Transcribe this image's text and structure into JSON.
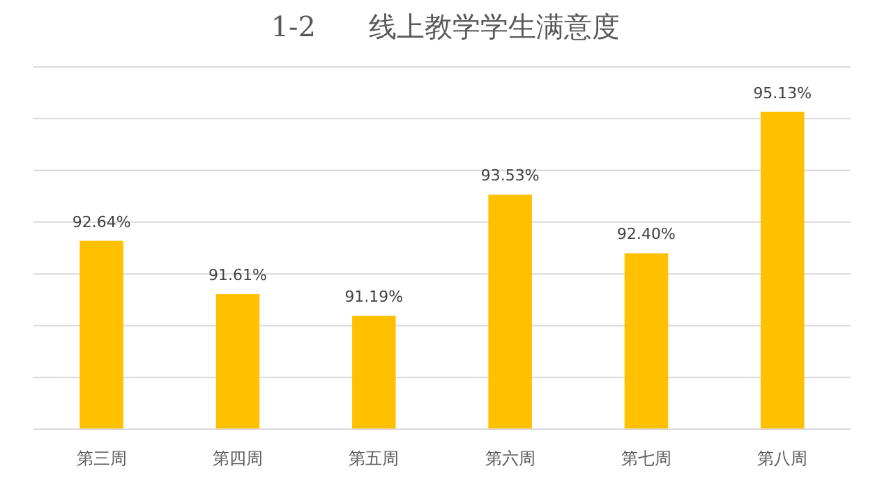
{
  "chart_data": {
    "type": "bar",
    "title": "1-2      线上教学学生满意度",
    "categories": [
      "第三周",
      "第四周",
      "第五周",
      "第六周",
      "第七周",
      "第八周"
    ],
    "values": [
      92.64,
      91.61,
      91.19,
      93.53,
      92.4,
      95.13
    ],
    "value_labels": [
      "92.64%",
      "91.61%",
      "91.19%",
      "93.53%",
      "92.40%",
      "95.13%"
    ],
    "color": "#ffc000",
    "ylim": [
      89,
      96
    ],
    "yticks": [
      89,
      90,
      91,
      92,
      93,
      94,
      95,
      96
    ],
    "tick_labels": "x",
    "grid": "y"
  }
}
